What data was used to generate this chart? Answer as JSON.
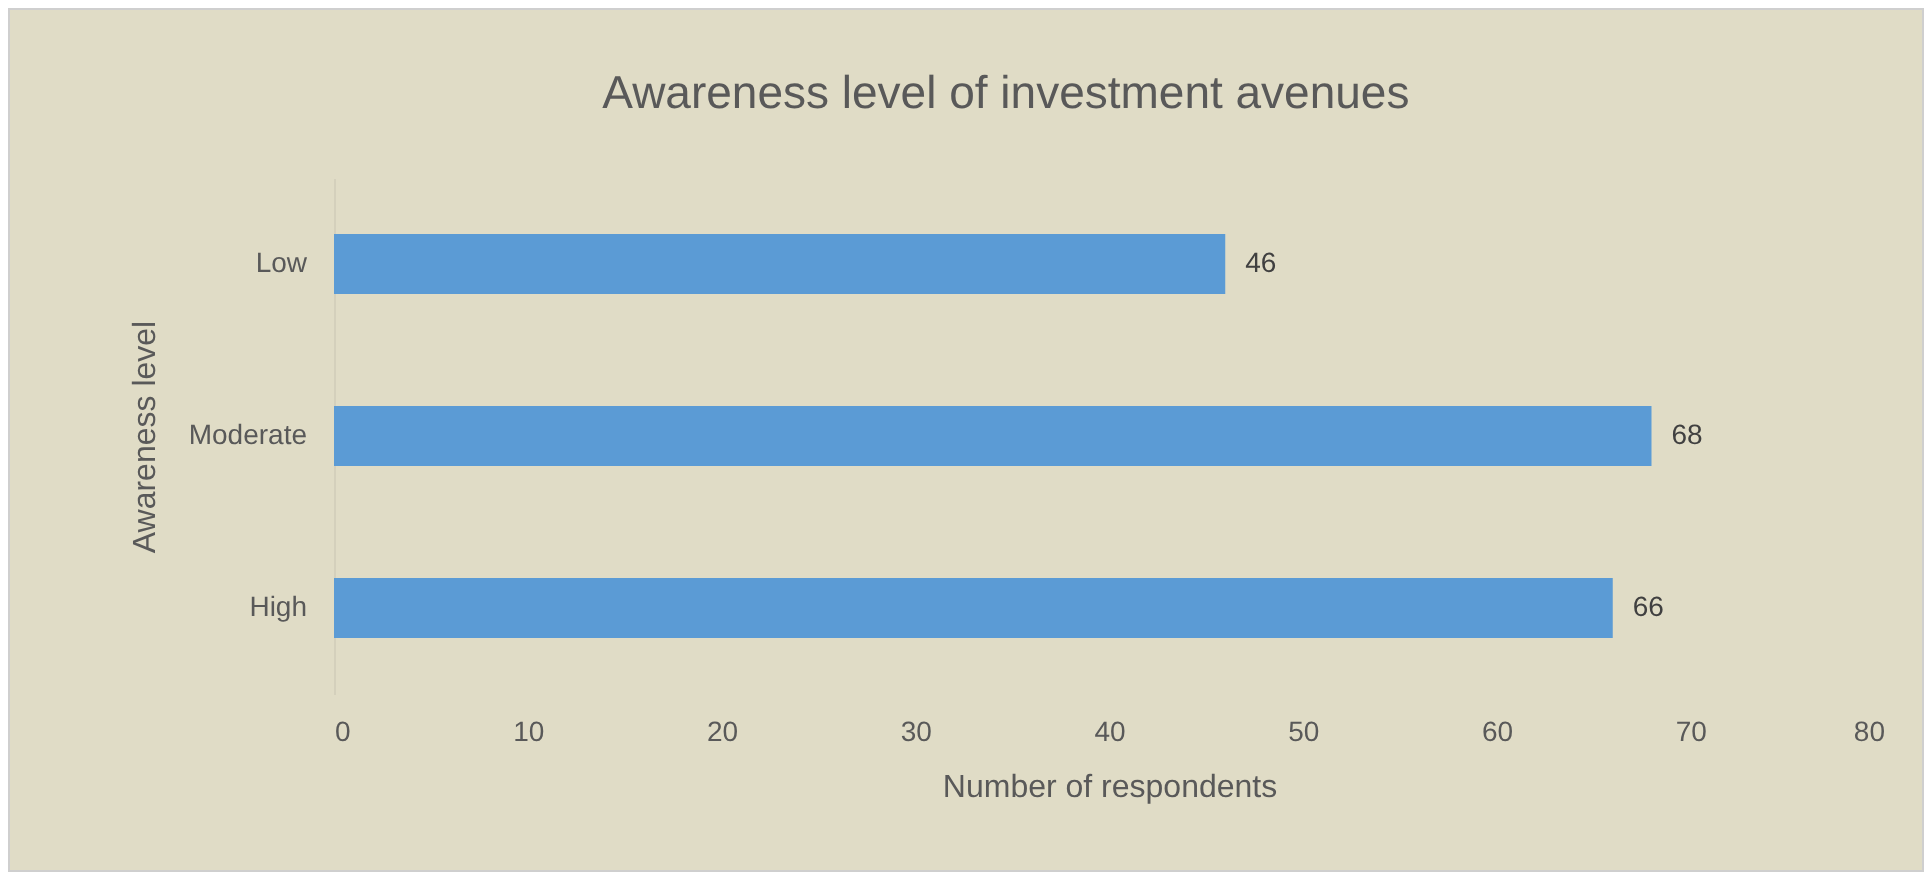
{
  "chart_data": {
    "type": "bar",
    "orientation": "horizontal",
    "title": "Awareness level of investment avenues",
    "xlabel": "Number of respondents",
    "ylabel": "Awareness level",
    "categories": [
      "Low",
      "Moderate",
      "High"
    ],
    "values": [
      46,
      68,
      66
    ],
    "color": "#5b9bd5",
    "xlim": [
      0,
      80
    ],
    "xticks": [
      0,
      10,
      20,
      30,
      40,
      50,
      60,
      70,
      80
    ],
    "data_labels": true
  }
}
